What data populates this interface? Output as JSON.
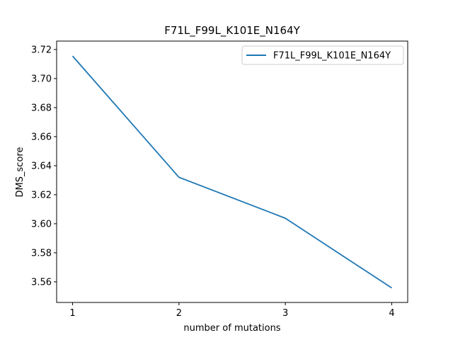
{
  "chart_data": {
    "type": "line",
    "title": "F71L_F99L_K101E_N164Y",
    "xlabel": "number of mutations",
    "ylabel": "DMS_score",
    "x": [
      1,
      2,
      3,
      4
    ],
    "xticks": [
      "1",
      "2",
      "3",
      "4"
    ],
    "yticks": [
      "3.56",
      "3.58",
      "3.60",
      "3.62",
      "3.64",
      "3.66",
      "3.68",
      "3.70",
      "3.72"
    ],
    "ylim": [
      3.5458,
      3.7258
    ],
    "xlim": [
      0.85,
      4.15
    ],
    "series": [
      {
        "name": "F71L_F99L_K101E_N164Y",
        "color": "#1f77b4",
        "values": [
          3.7155,
          3.632,
          3.6038,
          3.5558
        ]
      }
    ],
    "legend_position": "top-right",
    "grid": false
  }
}
